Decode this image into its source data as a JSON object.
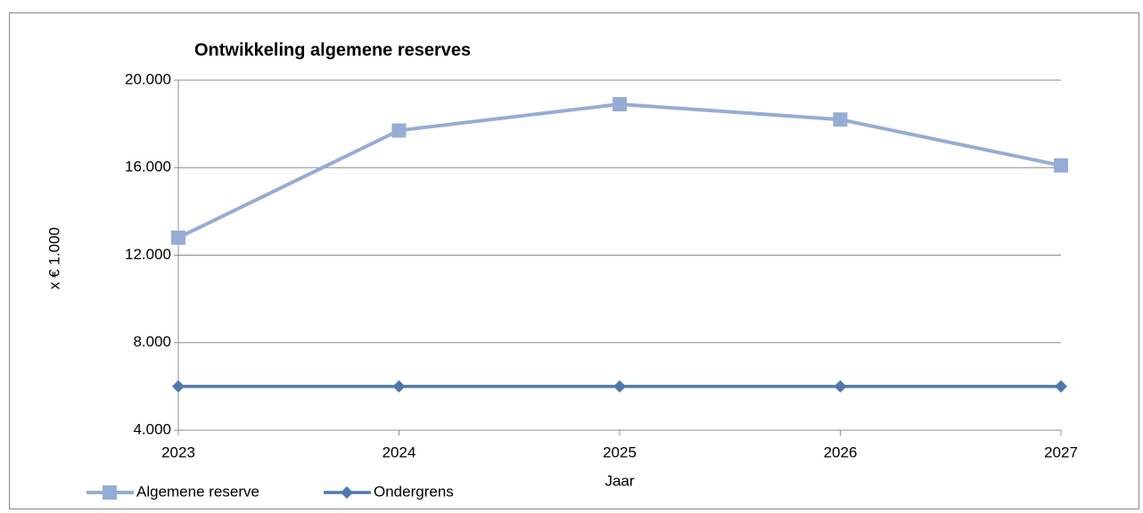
{
  "chart_data": {
    "type": "line",
    "title": "Ontwikkeling algemene reserves",
    "xlabel": "Jaar",
    "ylabel": "x € 1.000",
    "categories": [
      "2023",
      "2024",
      "2025",
      "2026",
      "2027"
    ],
    "series": [
      {
        "name": "Algemene reserve",
        "color": "#95acd4",
        "marker": "square",
        "values": [
          12800,
          17700,
          18900,
          18200,
          16100
        ]
      },
      {
        "name": "Ondergrens",
        "color": "#4f79ad",
        "marker": "diamond",
        "values": [
          6000,
          6000,
          6000,
          6000,
          6000
        ]
      }
    ],
    "ylim": [
      4000,
      20000
    ],
    "yticks": [
      {
        "value": 4000,
        "label": "4.000"
      },
      {
        "value": 8000,
        "label": "8.000"
      },
      {
        "value": 12000,
        "label": "12.000"
      },
      {
        "value": 16000,
        "label": "16.000"
      },
      {
        "value": 20000,
        "label": "20.000"
      }
    ],
    "grid": true,
    "legend": "bottom"
  }
}
